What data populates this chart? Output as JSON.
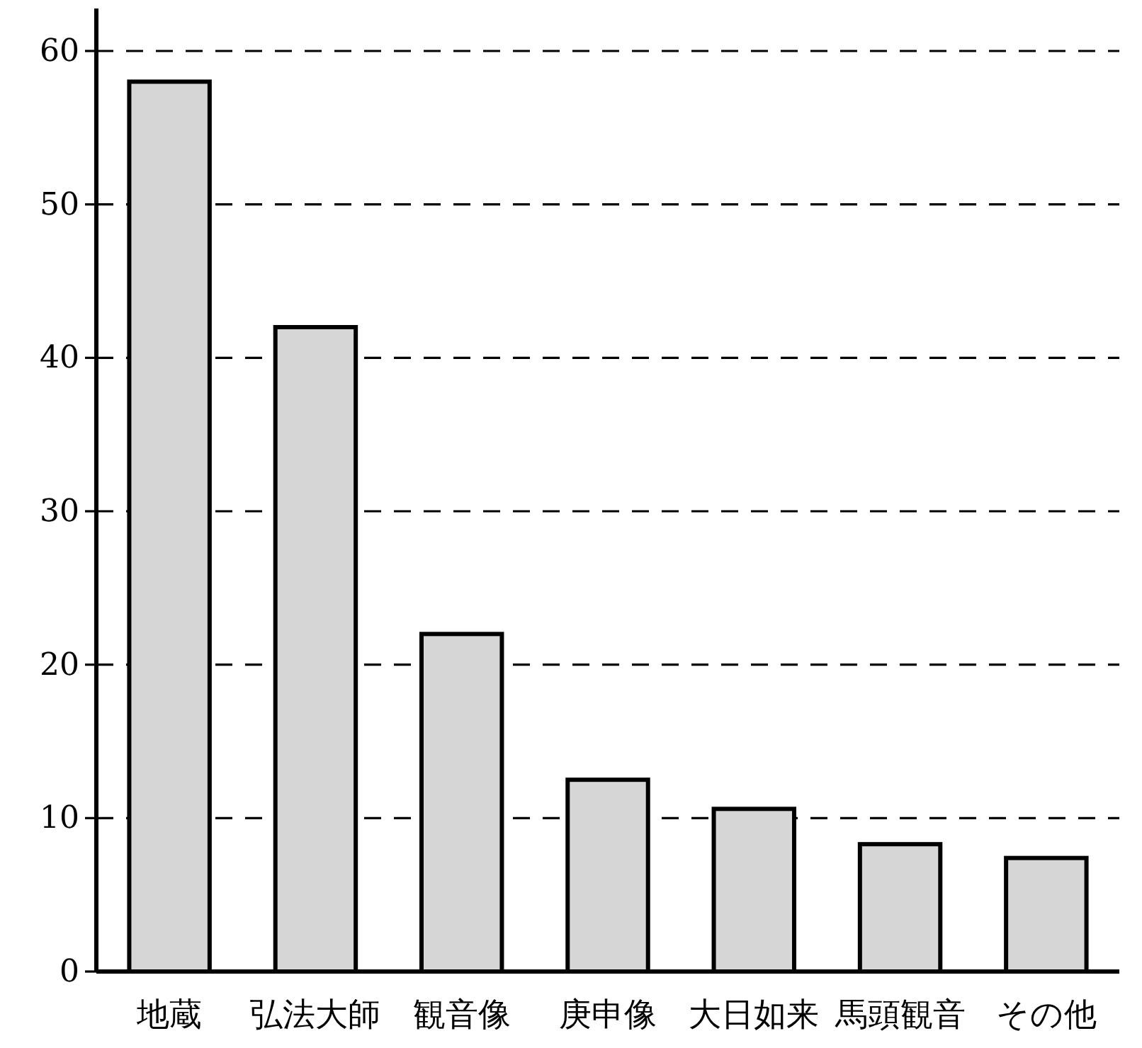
{
  "chart_data": {
    "type": "bar",
    "categories": [
      "地蔵",
      "弘法大師",
      "観音像",
      "庚申像",
      "大日如来",
      "馬頭観音",
      "その他"
    ],
    "values": [
      58,
      42,
      22,
      12.5,
      10.6,
      8.3,
      7.4
    ],
    "color": "#d6d6d6",
    "ylim": [
      0,
      60
    ],
    "yticks": [
      0,
      10,
      20,
      30,
      40,
      50,
      60
    ],
    "grid": "y"
  }
}
